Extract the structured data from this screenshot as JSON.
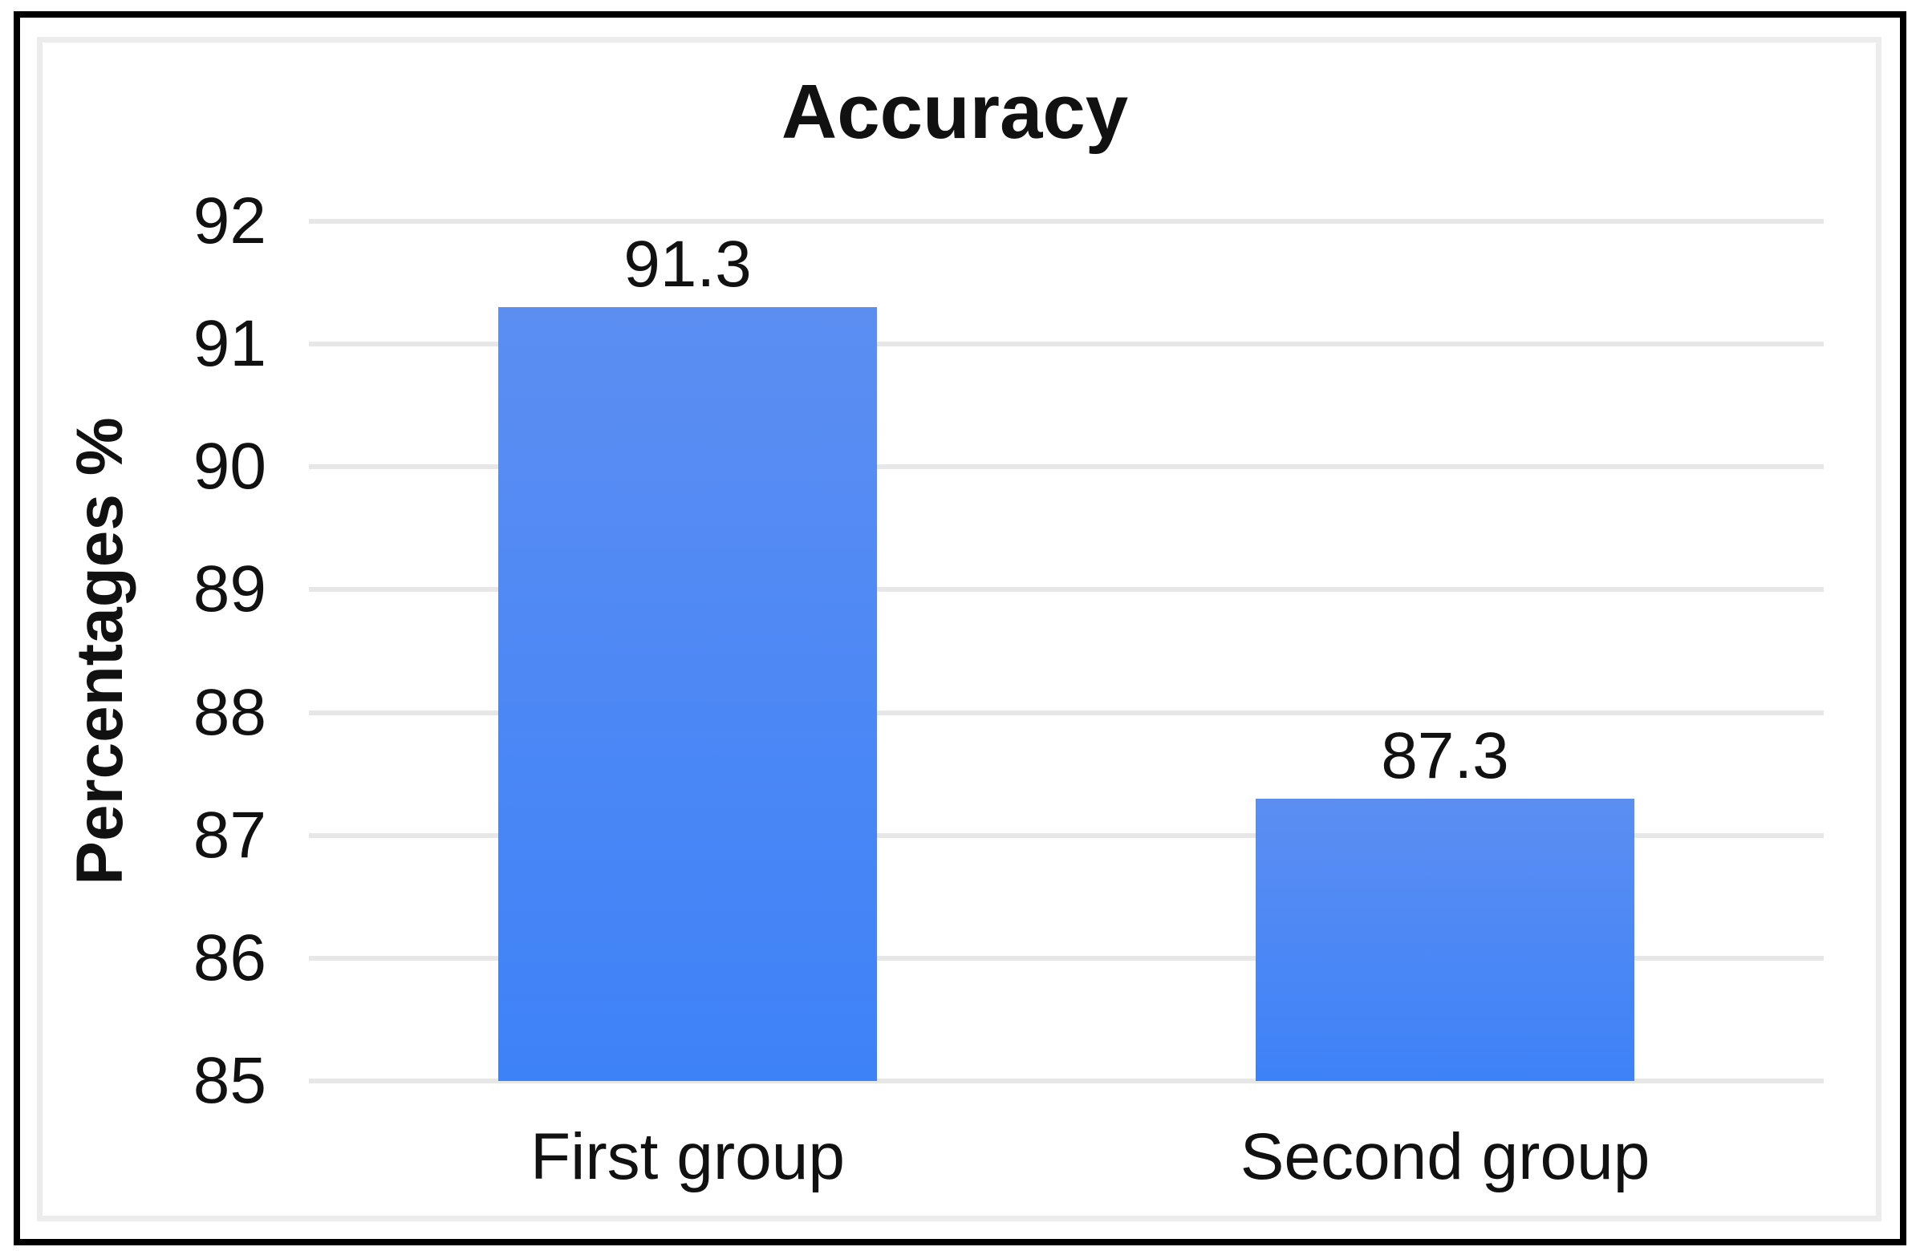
{
  "chart_data": {
    "type": "bar",
    "title": "Accuracy",
    "xlabel": "",
    "ylabel": "Percentages %",
    "categories": [
      "First group",
      "Second group"
    ],
    "values": [
      91.3,
      87.3
    ],
    "value_labels": [
      "91.3",
      "87.3"
    ],
    "ylim": [
      85,
      92
    ],
    "yticks": [
      85,
      86,
      87,
      88,
      89,
      90,
      91,
      92
    ],
    "grid": true,
    "legend": false,
    "colors": {
      "bar_top": "#5c8ef2",
      "bar_bottom": "#3e82f8",
      "gridline": "#e7e7e7",
      "text": "#111111",
      "frame_border": "#000000",
      "panel_border": "#ececec",
      "background": "#ffffff"
    }
  }
}
